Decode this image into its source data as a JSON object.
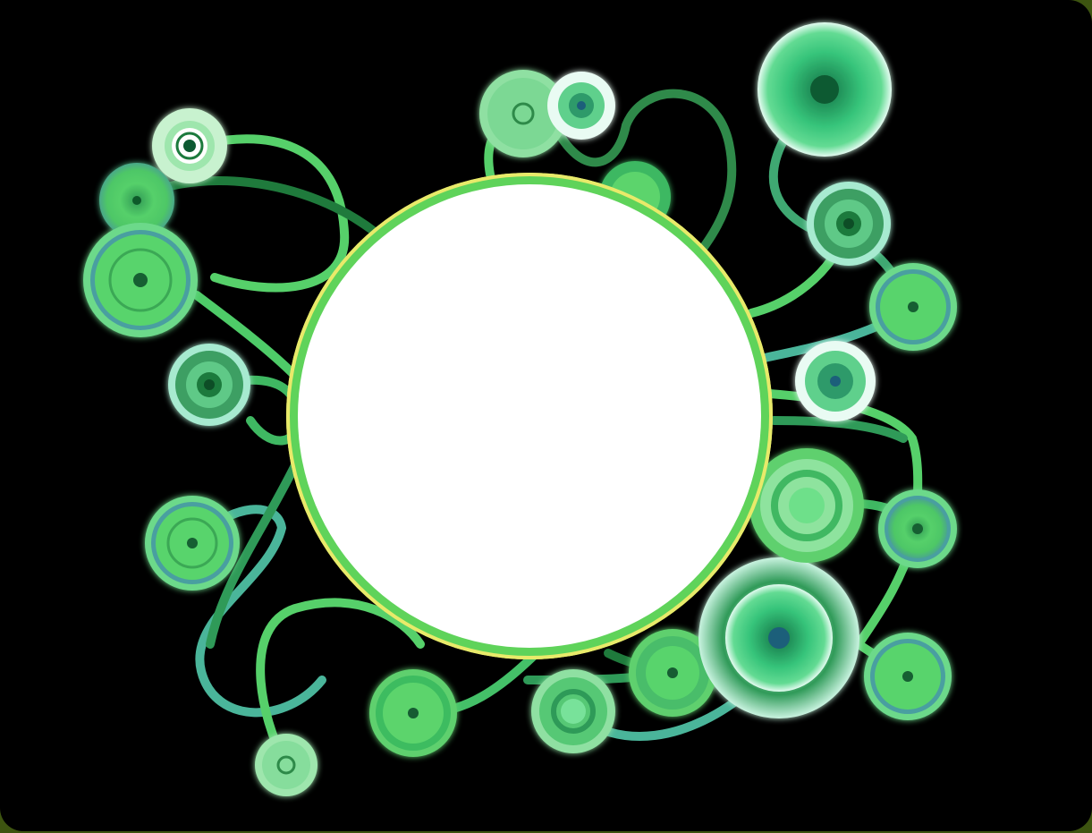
{
  "palette": {
    "background": "#000000",
    "border": "#3d5410",
    "center_disc": "#ffffff",
    "center_ring": "#5fd35a",
    "center_ring_edge": "#e8ea6a",
    "stroke_light": "#5ed66b",
    "stroke_mid": "#3faa5c",
    "stroke_dark": "#1f7a3c",
    "stroke_teal": "#4ab59a"
  },
  "shapes": {
    "center": "white-disc-with-green-ring",
    "nodes": "concentric-circle-ornaments",
    "links": "curved-vine-connectors"
  }
}
